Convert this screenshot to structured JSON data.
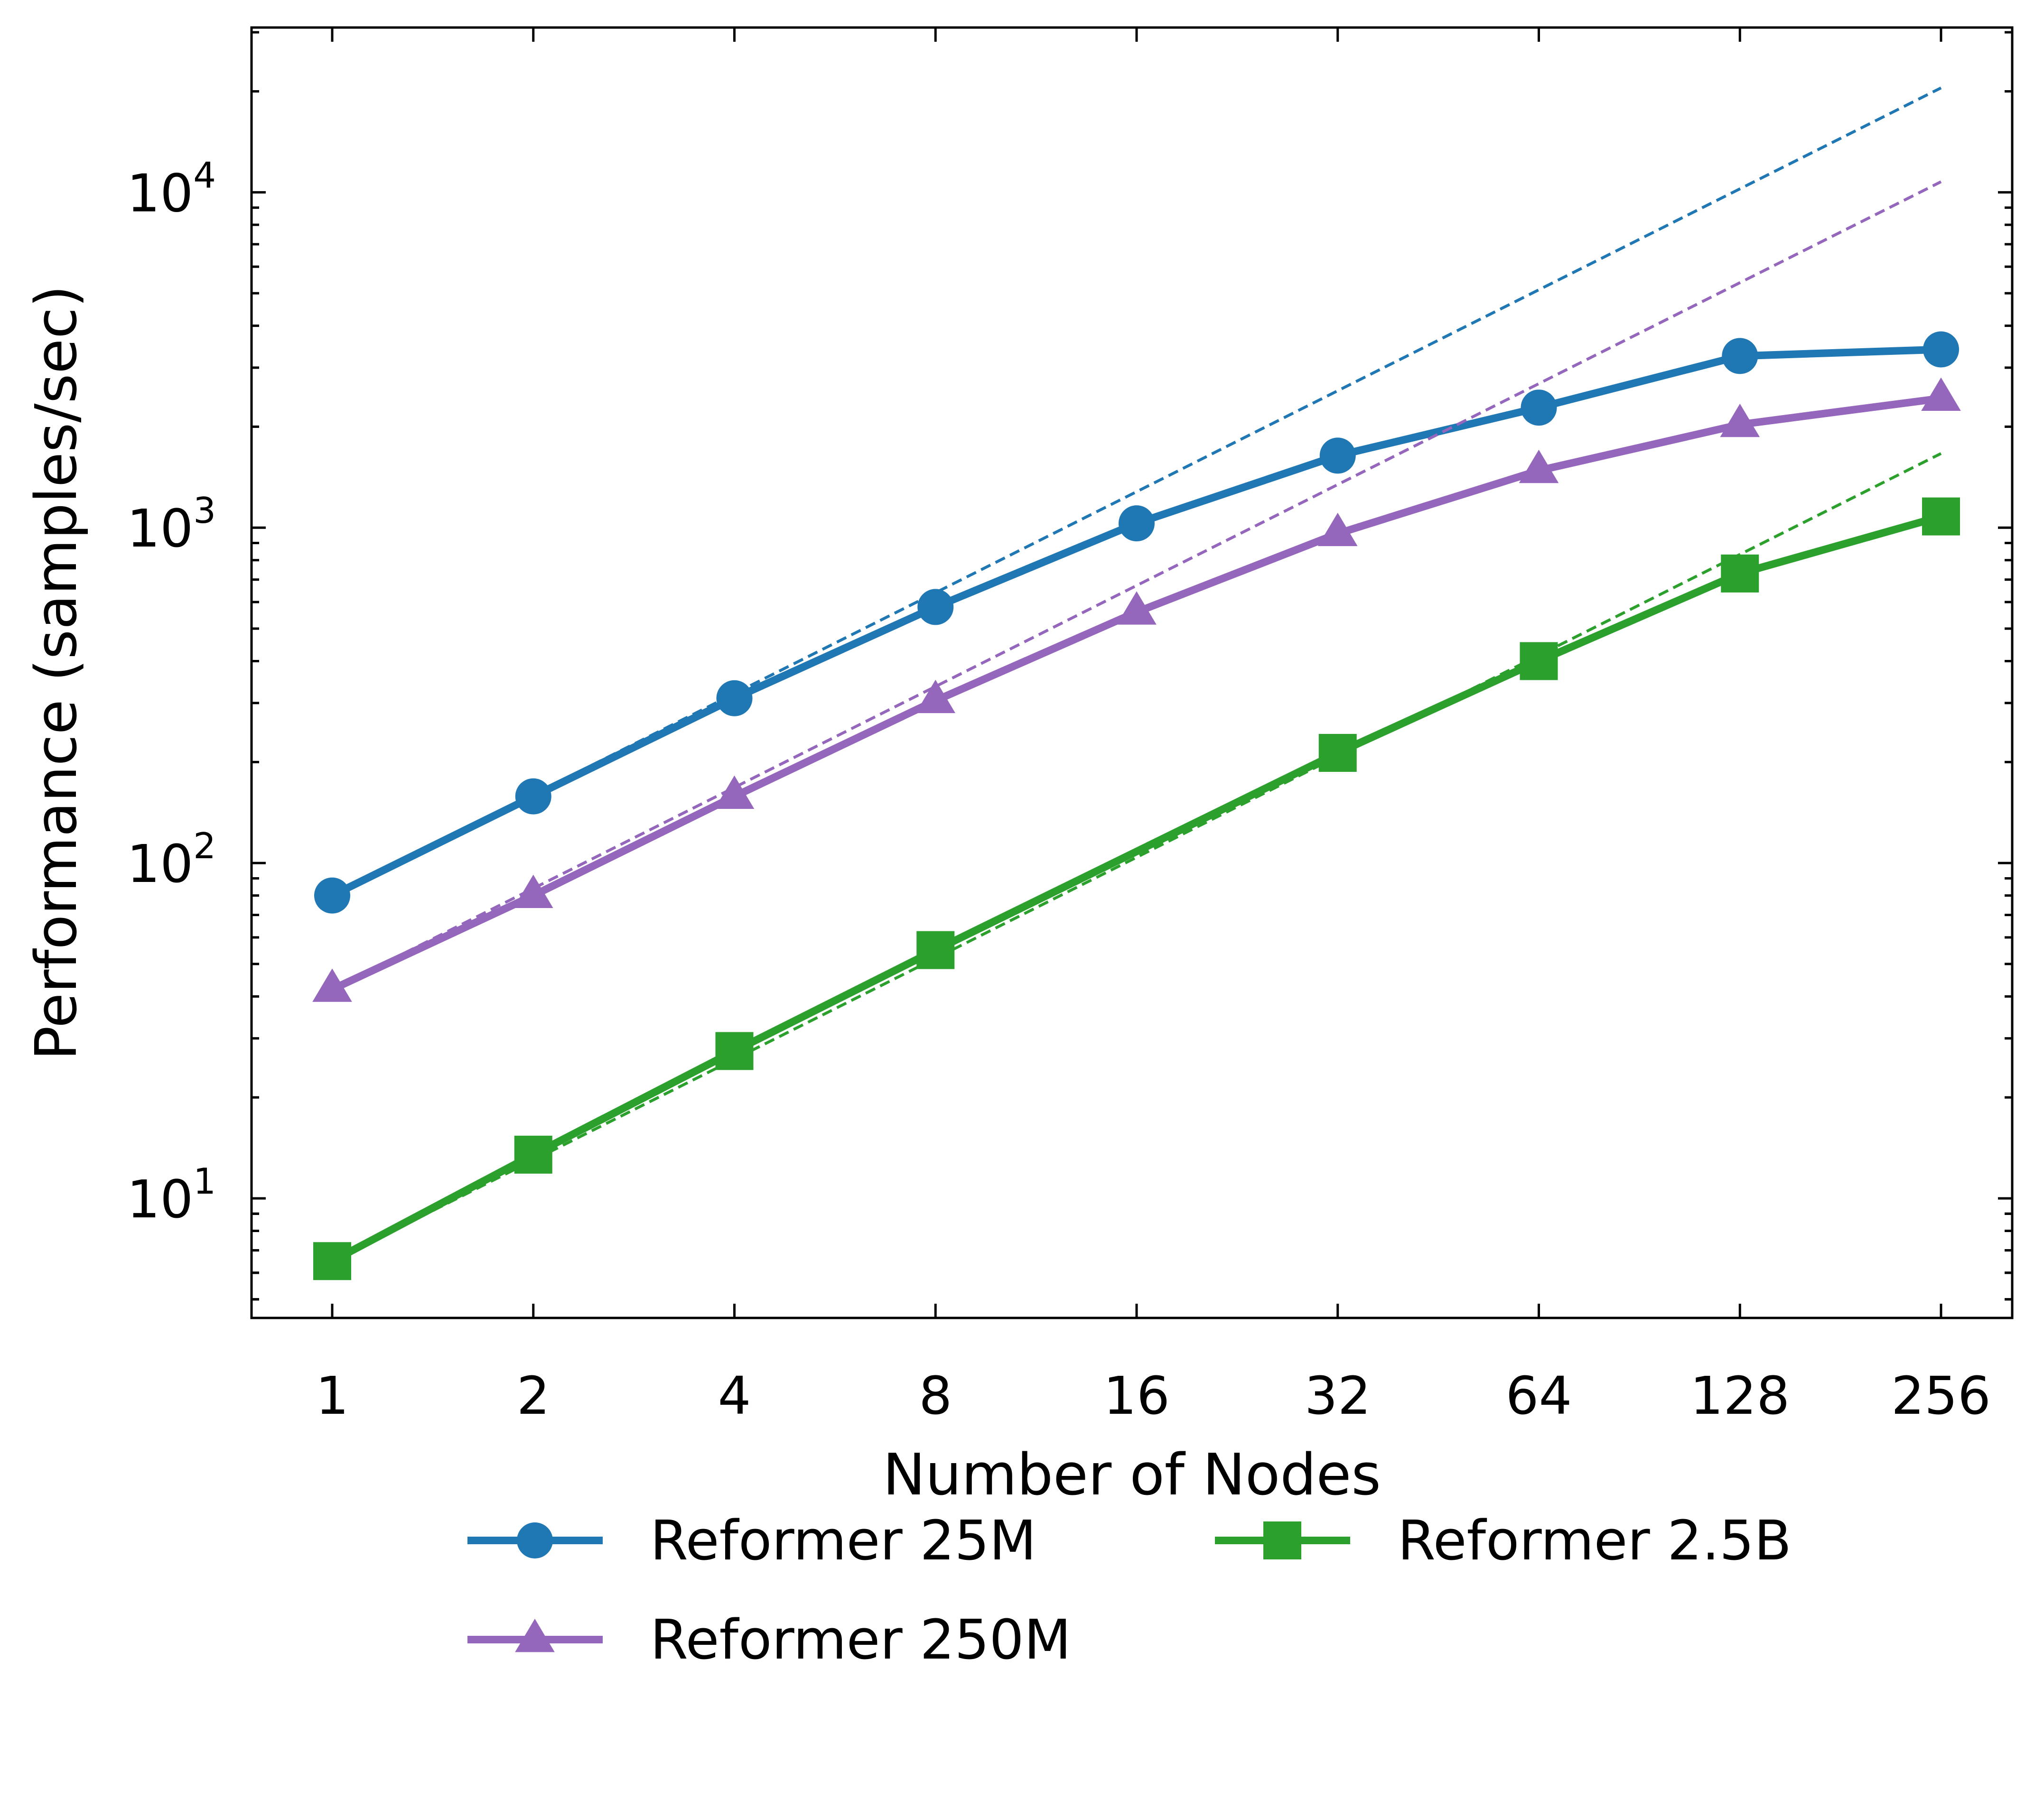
{
  "chart_data": {
    "type": "line",
    "xscale": "log2",
    "yscale": "log10",
    "xlabel": "Number of Nodes",
    "ylabel": "Performance (samples/sec)",
    "x": [
      1,
      2,
      4,
      8,
      16,
      32,
      64,
      128,
      256
    ],
    "xtick_labels": [
      "1",
      "2",
      "4",
      "8",
      "16",
      "32",
      "64",
      "128",
      "256"
    ],
    "ytick_labels": [
      {
        "base": "10",
        "exp": "1",
        "value": 10
      },
      {
        "base": "10",
        "exp": "2",
        "value": 100
      },
      {
        "base": "10",
        "exp": "3",
        "value": 1000
      },
      {
        "base": "10",
        "exp": "4",
        "value": 10000
      }
    ],
    "ylim": [
      4.4,
      31000
    ],
    "legend_position": "below plot",
    "series": [
      {
        "name": "Reformer 25M",
        "color": "#1f77b4",
        "marker": "circle",
        "values": [
          80,
          158,
          310,
          580,
          1030,
          1640,
          2280,
          3250,
          3400
        ],
        "ideal_scaling": [
          80,
          160,
          320,
          640,
          1280,
          2560,
          5120,
          10240,
          20480
        ]
      },
      {
        "name": "Reformer 250M",
        "color": "#9467bd",
        "marker": "triangle",
        "values": [
          42,
          80,
          158,
          305,
          560,
          960,
          1480,
          2030,
          2430
        ],
        "ideal_scaling": [
          42,
          84,
          168,
          336,
          672,
          1344,
          2688,
          5376,
          10752
        ]
      },
      {
        "name": "Reformer 2.5B",
        "color": "#2ca02c",
        "marker": "square",
        "values": [
          6.5,
          13.5,
          27.5,
          55,
          null,
          213,
          400,
          730,
          1080
        ],
        "ideal_scaling": [
          6.5,
          13,
          26,
          52,
          104,
          208,
          416,
          832,
          1664
        ]
      }
    ]
  }
}
